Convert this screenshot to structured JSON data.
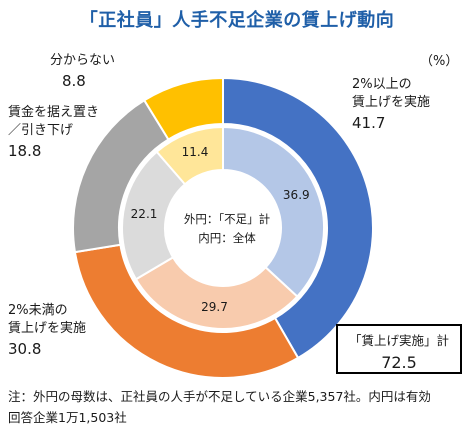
{
  "chart_data": {
    "type": "pie",
    "title": "「正社員」人手不足企業の賃上げ動向",
    "unit": "（%）",
    "categories": [
      "2%以上の賃上げを実施",
      "2%未満の賃上げを実施",
      "賃金を据え置き／引き下げ",
      "分からない"
    ],
    "series": [
      {
        "name": "外円：「不足」計",
        "values": [
          41.7,
          30.8,
          18.8,
          8.8
        ]
      },
      {
        "name": "内円：全体",
        "values": [
          36.9,
          29.7,
          22.1,
          11.4
        ]
      }
    ],
    "outer_labels": [
      {
        "lines": [
          "2%以上の",
          "賃上げを実施"
        ],
        "value": "41.7"
      },
      {
        "lines": [
          "2%未満の",
          "賃上げを実施"
        ],
        "value": "30.8"
      },
      {
        "lines": [
          "賃金を据え置き",
          "／引き下げ"
        ],
        "value": "18.8"
      },
      {
        "lines": [
          "分からない"
        ],
        "value": "8.8"
      }
    ],
    "inner_labels": [
      "36.9",
      "29.7",
      "22.1",
      "11.4"
    ],
    "center_lines": [
      "外円：「不足」計",
      "内円：全体"
    ],
    "outer_colors": [
      "#4472c4",
      "#ed7d31",
      "#a5a5a5",
      "#ffc000"
    ],
    "inner_colors": [
      "#b4c7e7",
      "#f8cbad",
      "#dbdbdb",
      "#ffe699"
    ],
    "legend": "none"
  },
  "summary_box": {
    "caption": "「賃上げ実施」計",
    "value": "72.5"
  },
  "note_line1": "注：外円の母数は、正社員の人手が不足している企業5,357社。内円は有効",
  "note_line2": "回答企業1万1,503社"
}
